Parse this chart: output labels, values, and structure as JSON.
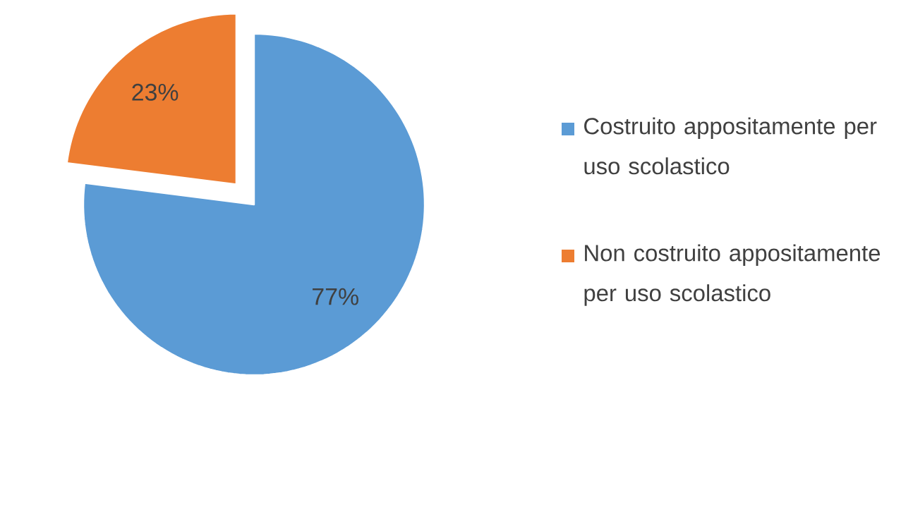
{
  "chart_data": {
    "type": "pie",
    "categories": [
      "Costruito appositamente per uso scolastico",
      "Non costruito appositamente per uso scolastico"
    ],
    "values": [
      77,
      23
    ],
    "colors": [
      "#5b9bd5",
      "#ed7d31"
    ],
    "value_labels": [
      "77%",
      "23%"
    ],
    "legend": "right"
  }
}
